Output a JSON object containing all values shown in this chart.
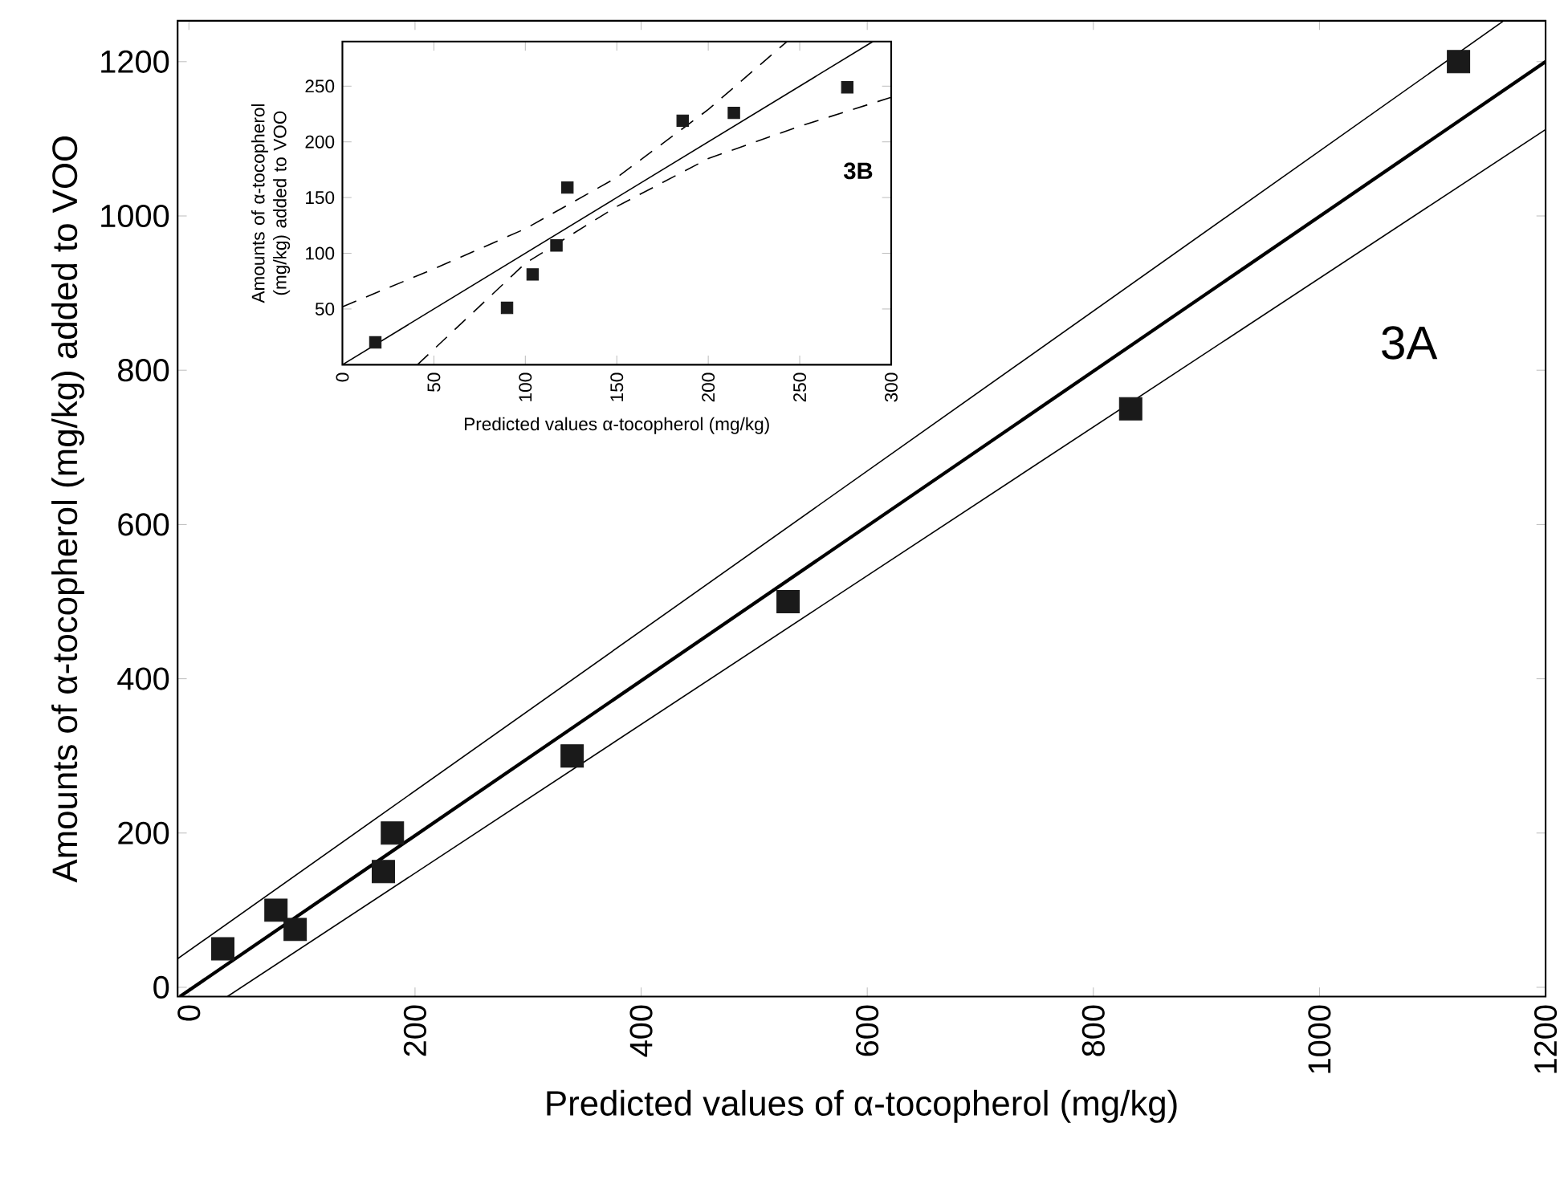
{
  "chart_data": [
    {
      "type": "scatter",
      "xlabel": "Predicted values of α-tocopherol (mg/kg)",
      "ylabel": "Amounts of α-tocopherol (mg/kg) added to VOO",
      "annotations": [
        "3A"
      ],
      "xlim": [
        -10,
        1200
      ],
      "ylim": [
        -12,
        1253
      ],
      "xticks": [
        0,
        200,
        400,
        600,
        800,
        1000,
        1200
      ],
      "yticks": [
        0,
        200,
        400,
        600,
        800,
        1000,
        1200
      ],
      "series": [
        {
          "color": "#1a1a1a",
          "marker": "square",
          "x": [
            30,
            77,
            94,
            172,
            180,
            339,
            530,
            833,
            1123
          ],
          "values": [
            50,
            100,
            75,
            150,
            200,
            300,
            500,
            750,
            1200
          ]
        },
        {
          "type": "line",
          "color": "#000000",
          "line_style": "solid",
          "x": [
            -8,
            1200
          ],
          "values": [
            -12,
            1200
          ]
        },
        {
          "type": "line",
          "color": "#000000",
          "line_style": "solid",
          "x": [
            -10,
            1163
          ],
          "values": [
            37,
            1253
          ]
        },
        {
          "type": "line",
          "color": "#000000",
          "line_style": "solid",
          "x": [
            34,
            1200
          ],
          "values": [
            -12,
            1112
          ]
        }
      ]
    },
    {
      "type": "scatter",
      "xlabel": "Predicted values α-tocopherol (mg/kg)",
      "ylabel": "Amounts of α-tocopherol (mg/kg) added to VOO",
      "annotations": [
        "3B"
      ],
      "xlim": [
        0,
        300
      ],
      "ylim": [
        0,
        290
      ],
      "xticks": [
        0,
        50,
        100,
        150,
        200,
        250,
        300
      ],
      "yticks": [
        50,
        100,
        150,
        200,
        250
      ],
      "series": [
        {
          "color": "#1a1a1a",
          "marker": "square",
          "x": [
            18,
            90,
            104,
            117,
            123,
            186,
            214,
            276
          ],
          "values": [
            20,
            51,
            81,
            107,
            159,
            219,
            226,
            249
          ]
        },
        {
          "type": "line",
          "color": "#000000",
          "line_style": "solid",
          "x": [
            0,
            290
          ],
          "values": [
            0,
            290
          ]
        },
        {
          "type": "line",
          "color": "#000000",
          "line_style": "dashed",
          "x": [
            0,
            50,
            100,
            150,
            200,
            243
          ],
          "values": [
            52,
            86,
            122,
            168,
            229,
            290
          ]
        },
        {
          "type": "line",
          "color": "#000000",
          "line_style": "dashed",
          "x": [
            41,
            100,
            150,
            200,
            250,
            300
          ],
          "values": [
            0,
            91,
            142,
            185,
            214,
            240
          ]
        }
      ]
    }
  ]
}
